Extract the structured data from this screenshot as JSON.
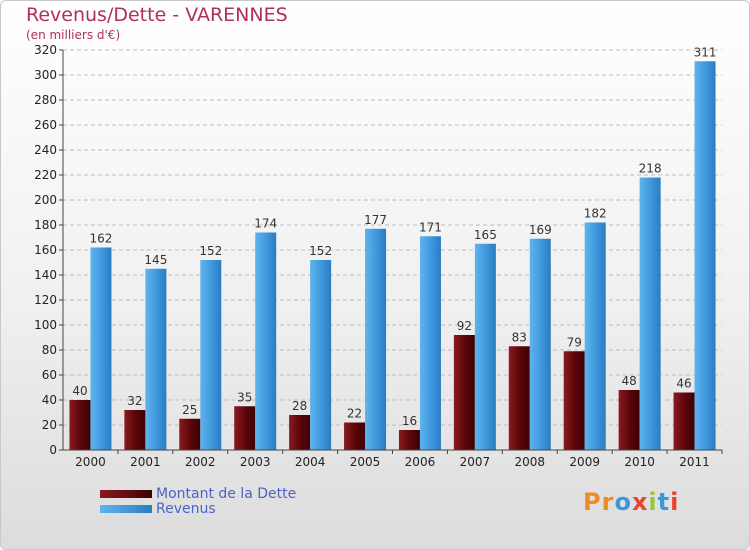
{
  "title": "Revenus/Dette - VARENNES",
  "subtitle": "(en milliers d'€)",
  "colors": {
    "dette": "#6b0a0f",
    "revenus": "#4aa3e4",
    "title": "#b0305a"
  },
  "legend": {
    "dette_label": "Montant de la Dette",
    "revenus_label": "Revenus"
  },
  "logo": {
    "text": "Proxiti"
  },
  "chart_data": {
    "type": "bar",
    "title": "Revenus/Dette - VARENNES",
    "ylabel": "(en milliers d'€)",
    "ylim": [
      0,
      320
    ],
    "yticks": [
      0,
      20,
      40,
      60,
      80,
      100,
      120,
      140,
      160,
      180,
      200,
      220,
      240,
      260,
      280,
      300,
      320
    ],
    "categories": [
      "2000",
      "2001",
      "2002",
      "2003",
      "2004",
      "2005",
      "2006",
      "2007",
      "2008",
      "2009",
      "2010",
      "2011"
    ],
    "series": [
      {
        "name": "Montant de la Dette",
        "values": [
          40,
          32,
          25,
          35,
          28,
          22,
          16,
          92,
          83,
          79,
          48,
          46
        ]
      },
      {
        "name": "Revenus",
        "values": [
          162,
          145,
          152,
          174,
          152,
          177,
          171,
          165,
          169,
          182,
          218,
          311
        ]
      }
    ],
    "legend": "bottom-left"
  }
}
